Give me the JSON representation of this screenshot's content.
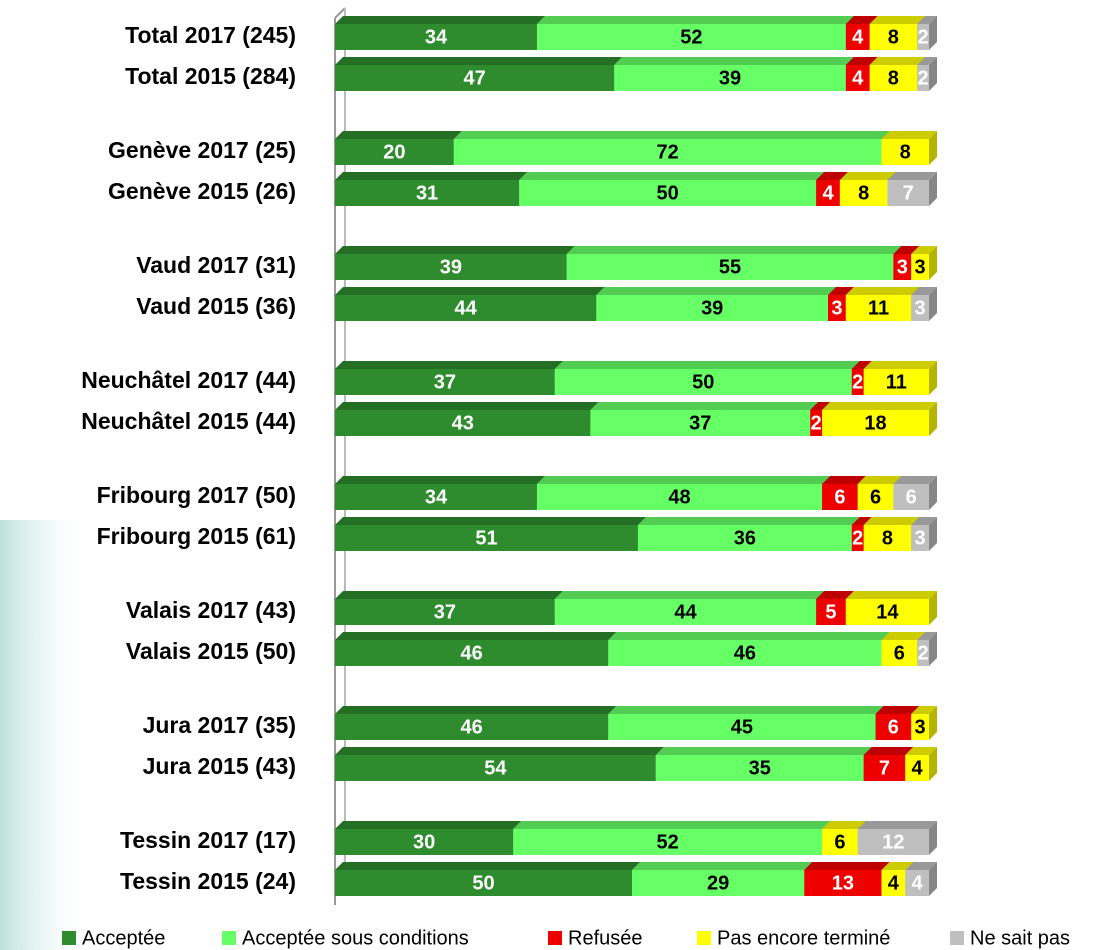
{
  "chart_data": {
    "type": "stacked-bar-horizontal",
    "categories": [
      "Total 2017 (245)",
      "Total 2015 (284)",
      "Genève 2017 (25)",
      "Genève 2015 (26)",
      "Vaud 2017 (31)",
      "Vaud 2015 (36)",
      "Neuchâtel 2017  (44)",
      "Neuchâtel 2015 (44)",
      "Fribourg 2017  (50)",
      "Fribourg 2015 (61)",
      "Valais 2017 (43)",
      "Valais 2015 (50)",
      "Jura 2017 (35)",
      "Jura 2015 (43)",
      "Tessin 2017 (17)",
      "Tessin 2015 (24)"
    ],
    "xlim": [
      0,
      100
    ],
    "legend": "bottom",
    "series": [
      {
        "name": "Acceptée",
        "color": "#2e8b2e",
        "label_color": "#ffffff",
        "values": [
          34,
          47,
          20,
          31,
          39,
          44,
          37,
          43,
          34,
          51,
          37,
          46,
          46,
          54,
          30,
          50
        ]
      },
      {
        "name": "Acceptée sous conditions",
        "color": "#66ff66",
        "label_color": "#000000",
        "values": [
          52,
          39,
          72,
          50,
          55,
          39,
          50,
          37,
          48,
          36,
          44,
          46,
          45,
          35,
          52,
          29
        ]
      },
      {
        "name": "Refusée",
        "color": "#ee0000",
        "label_color": "#ffffff",
        "values": [
          4,
          4,
          null,
          4,
          3,
          3,
          2,
          2,
          6,
          2,
          5,
          null,
          6,
          7,
          null,
          13
        ]
      },
      {
        "name": "Pas encore terminé",
        "color": "#ffff00",
        "label_color": "#000000",
        "values": [
          8,
          8,
          8,
          8,
          3,
          11,
          11,
          18,
          6,
          8,
          14,
          6,
          3,
          4,
          6,
          4
        ]
      },
      {
        "name": "Ne sait pas",
        "color": "#bfbfbf",
        "label_color": "#ffffff",
        "values": [
          2,
          2,
          null,
          7,
          null,
          3,
          null,
          null,
          6,
          3,
          null,
          2,
          null,
          null,
          12,
          4
        ]
      }
    ]
  }
}
